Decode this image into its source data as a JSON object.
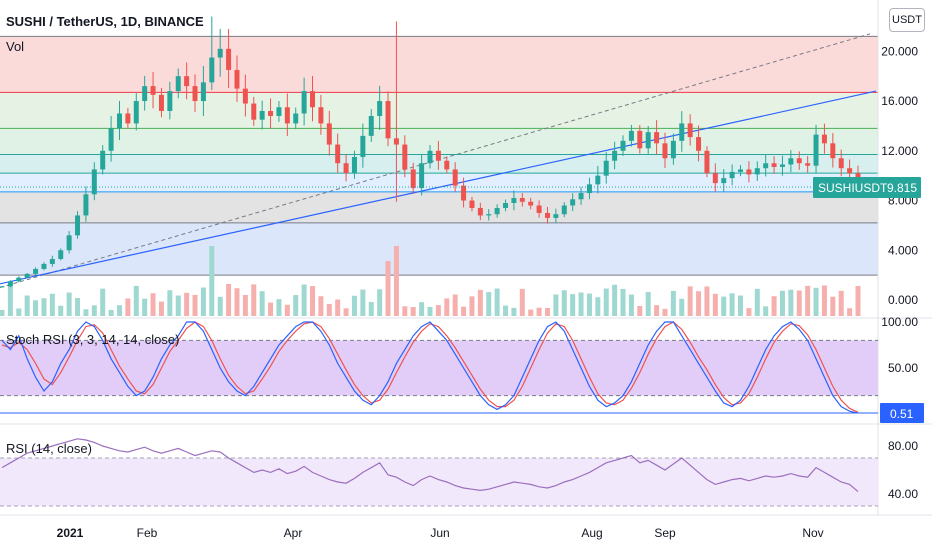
{
  "header": {
    "title": "SUSHI / TetherUS, 1D, BINANCE",
    "volume_label": "Vol",
    "currency_button": "USDT"
  },
  "price_badge": {
    "symbol": "SUSHIUSDT",
    "value": "9.815",
    "color": "#26a69a"
  },
  "stoch_badge": {
    "value": "0.51",
    "color": "#2962ff"
  },
  "indicators": {
    "stoch_label": "Stoch RSI (3, 3, 14, 14, close)",
    "rsi_label": "RSI (14, close)"
  },
  "colors": {
    "up": "#26a69a",
    "down": "#ef5350",
    "trendline": "#2962ff",
    "stoch_k": "#2962ff",
    "stoch_d": "#ef5350",
    "rsi": "#9c6fbe",
    "stoch_band": "#e1cdf8",
    "rsi_band": "#f1e8fb"
  },
  "chart_data": [
    {
      "type": "candlestick",
      "x_ticks": [
        "2021",
        "Feb",
        "Apr",
        "Jun",
        "Aug",
        "Sep",
        "Nov"
      ],
      "y_ticks": [
        "0.000",
        "4.000",
        "8.000",
        "12.000",
        "16.000",
        "20.000"
      ],
      "ylim": [
        0,
        23
      ],
      "fib_levels": [
        2.0,
        6.2,
        8.7,
        10.2,
        11.7,
        13.8,
        16.7,
        21.2
      ],
      "fib_zones": [
        "#dbe6fb",
        "#e3e3e3",
        "#e1efff",
        "#d7efee",
        "#e0f2e5",
        "#e6f3e4",
        "#fbdada"
      ],
      "series": [
        {
          "name": "SUSHIUSDT",
          "close": [
            1.1,
            1.5,
            1.8,
            2.1,
            2.5,
            2.9,
            3.3,
            4.0,
            5.2,
            6.8,
            8.5,
            10.5,
            12.0,
            13.8,
            15.0,
            14.2,
            16.0,
            17.2,
            16.5,
            15.2,
            16.8,
            18.0,
            17.2,
            16.0,
            17.5,
            19.5,
            20.2,
            18.5,
            17.0,
            15.8,
            14.5,
            15.2,
            14.8,
            15.5,
            14.2,
            15.0,
            16.8,
            15.5,
            14.2,
            12.5,
            11.0,
            10.2,
            11.5,
            13.2,
            14.8,
            16.0,
            13.0,
            12.5,
            10.5,
            9.0,
            11.0,
            12.0,
            11.2,
            10.5,
            9.2,
            8.0,
            7.4,
            6.8,
            6.9,
            7.4,
            7.8,
            8.2,
            7.9,
            7.6,
            7.0,
            6.6,
            6.9,
            7.6,
            8.1,
            8.6,
            9.3,
            10.0,
            11.2,
            12.0,
            12.8,
            13.6,
            12.2,
            13.5,
            12.6,
            11.4,
            12.8,
            14.2,
            13.1,
            12.0,
            10.2,
            9.4,
            9.8,
            10.3,
            10.5,
            10.1,
            10.6,
            11.0,
            10.7,
            10.9,
            11.4,
            11.0,
            10.8,
            13.3,
            12.6,
            11.4,
            10.6,
            10.2,
            9.8
          ],
          "high_max": 22.8,
          "low_min": 0.9
        }
      ],
      "volume": {
        "ylim": [
          0,
          30
        ]
      }
    },
    {
      "type": "line",
      "title": "Stoch RSI (3, 3, 14, 14, close)",
      "y_ticks": [
        "100.00",
        "50.00"
      ],
      "ylim": [
        0,
        100
      ],
      "band": [
        20,
        80
      ],
      "series": [
        {
          "name": "K",
          "color": "#2962ff",
          "values": [
            80,
            70,
            85,
            60,
            40,
            25,
            35,
            55,
            70,
            90,
            100,
            95,
            80,
            60,
            45,
            30,
            20,
            25,
            40,
            60,
            75,
            85,
            100,
            100,
            90,
            70,
            50,
            35,
            25,
            20,
            30,
            45,
            60,
            75,
            85,
            95,
            100,
            100,
            90,
            75,
            55,
            40,
            25,
            15,
            10,
            20,
            35,
            55,
            70,
            85,
            95,
            100,
            90,
            80,
            65,
            50,
            35,
            20,
            10,
            5,
            10,
            20,
            40,
            60,
            80,
            95,
            100,
            90,
            70,
            50,
            30,
            15,
            8,
            12,
            20,
            35,
            55,
            75,
            90,
            100,
            100,
            85,
            70,
            55,
            40,
            25,
            12,
            8,
            15,
            30,
            50,
            70,
            85,
            95,
            100,
            92,
            80,
            60,
            40,
            20,
            8,
            3,
            1
          ]
        },
        {
          "name": "D",
          "color": "#ef5350",
          "values": [
            75,
            72,
            78,
            70,
            55,
            38,
            32,
            45,
            62,
            80,
            95,
            97,
            88,
            70,
            52,
            38,
            25,
            22,
            32,
            50,
            68,
            80,
            93,
            100,
            95,
            80,
            60,
            42,
            30,
            22,
            25,
            38,
            52,
            68,
            80,
            90,
            98,
            100,
            95,
            82,
            65,
            48,
            32,
            20,
            12,
            15,
            27,
            45,
            62,
            78,
            90,
            98,
            95,
            85,
            72,
            57,
            42,
            27,
            15,
            8,
            8,
            15,
            30,
            50,
            70,
            88,
            98,
            95,
            80,
            60,
            40,
            22,
            12,
            10,
            15,
            28,
            45,
            65,
            82,
            95,
            100,
            92,
            78,
            62,
            48,
            32,
            18,
            10,
            12,
            22,
            40,
            60,
            78,
            90,
            98,
            96,
            86,
            70,
            50,
            30,
            15,
            6,
            2
          ]
        }
      ],
      "last_value": "0.51"
    },
    {
      "type": "line",
      "title": "RSI (14, close)",
      "y_ticks": [
        "80.00",
        "40.00"
      ],
      "ylim": [
        25,
        95
      ],
      "band": [
        30,
        70
      ],
      "series": [
        {
          "name": "RSI",
          "color": "#9c6fbe",
          "values": [
            62,
            66,
            70,
            74,
            76,
            78,
            80,
            82,
            84,
            86,
            85,
            83,
            80,
            78,
            76,
            75,
            77,
            79,
            76,
            74,
            76,
            78,
            75,
            72,
            74,
            76,
            75,
            70,
            66,
            62,
            58,
            60,
            58,
            61,
            57,
            59,
            63,
            58,
            55,
            52,
            50,
            49,
            53,
            58,
            62,
            66,
            56,
            54,
            50,
            47,
            52,
            55,
            52,
            50,
            47,
            45,
            44,
            43,
            44,
            46,
            48,
            50,
            49,
            48,
            46,
            45,
            47,
            50,
            52,
            55,
            58,
            62,
            66,
            68,
            70,
            72,
            66,
            68,
            64,
            60,
            65,
            70,
            64,
            58,
            52,
            48,
            50,
            52,
            53,
            51,
            53,
            55,
            54,
            55,
            57,
            55,
            54,
            62,
            58,
            54,
            50,
            48,
            42
          ]
        }
      ]
    }
  ]
}
